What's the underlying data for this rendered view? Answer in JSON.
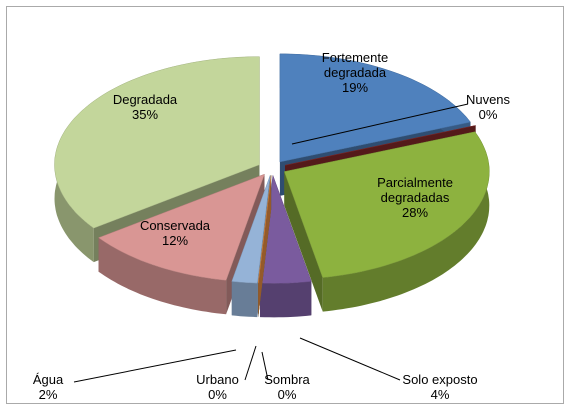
{
  "chart_data": {
    "type": "pie",
    "categories": [
      "Fortemente degradada",
      "Nuvens",
      "Parcialmente degradadas",
      "Solo exposto",
      "Sombra",
      "Urbano",
      "Água",
      "Conservada",
      "Degradada"
    ],
    "values": [
      19,
      0,
      28,
      4,
      0,
      0,
      2,
      12,
      35
    ],
    "value_labels": [
      "19%",
      "0%",
      "28%",
      "4%",
      "0%",
      "0%",
      "2%",
      "12%",
      "35%"
    ],
    "colors": [
      "#4f81bd",
      "#8c2b2b",
      "#8db23f",
      "#7a5b9e",
      "#3a8fa8",
      "#f79646",
      "#95b3d7",
      "#d99694",
      "#c3d69b"
    ]
  }
}
